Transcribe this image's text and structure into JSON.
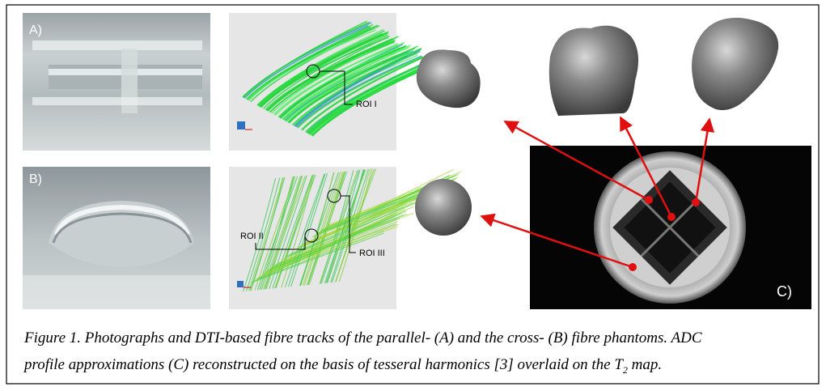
{
  "panels": {
    "a_label": "A)",
    "b_label": "B)",
    "c_label": "C)"
  },
  "roi": [
    "ROI I",
    "ROI II",
    "ROI III"
  ],
  "caption": {
    "line1": "Figure 1. Photographs and DTI-based fibre tracks of the parallel- (A) and the cross- (B) fibre phantoms. ADC",
    "line2": "profile approximations (C) reconstructed on the basis of tesseral harmonics [3] overlaid on the T",
    "sub": "2",
    "end": " map."
  }
}
